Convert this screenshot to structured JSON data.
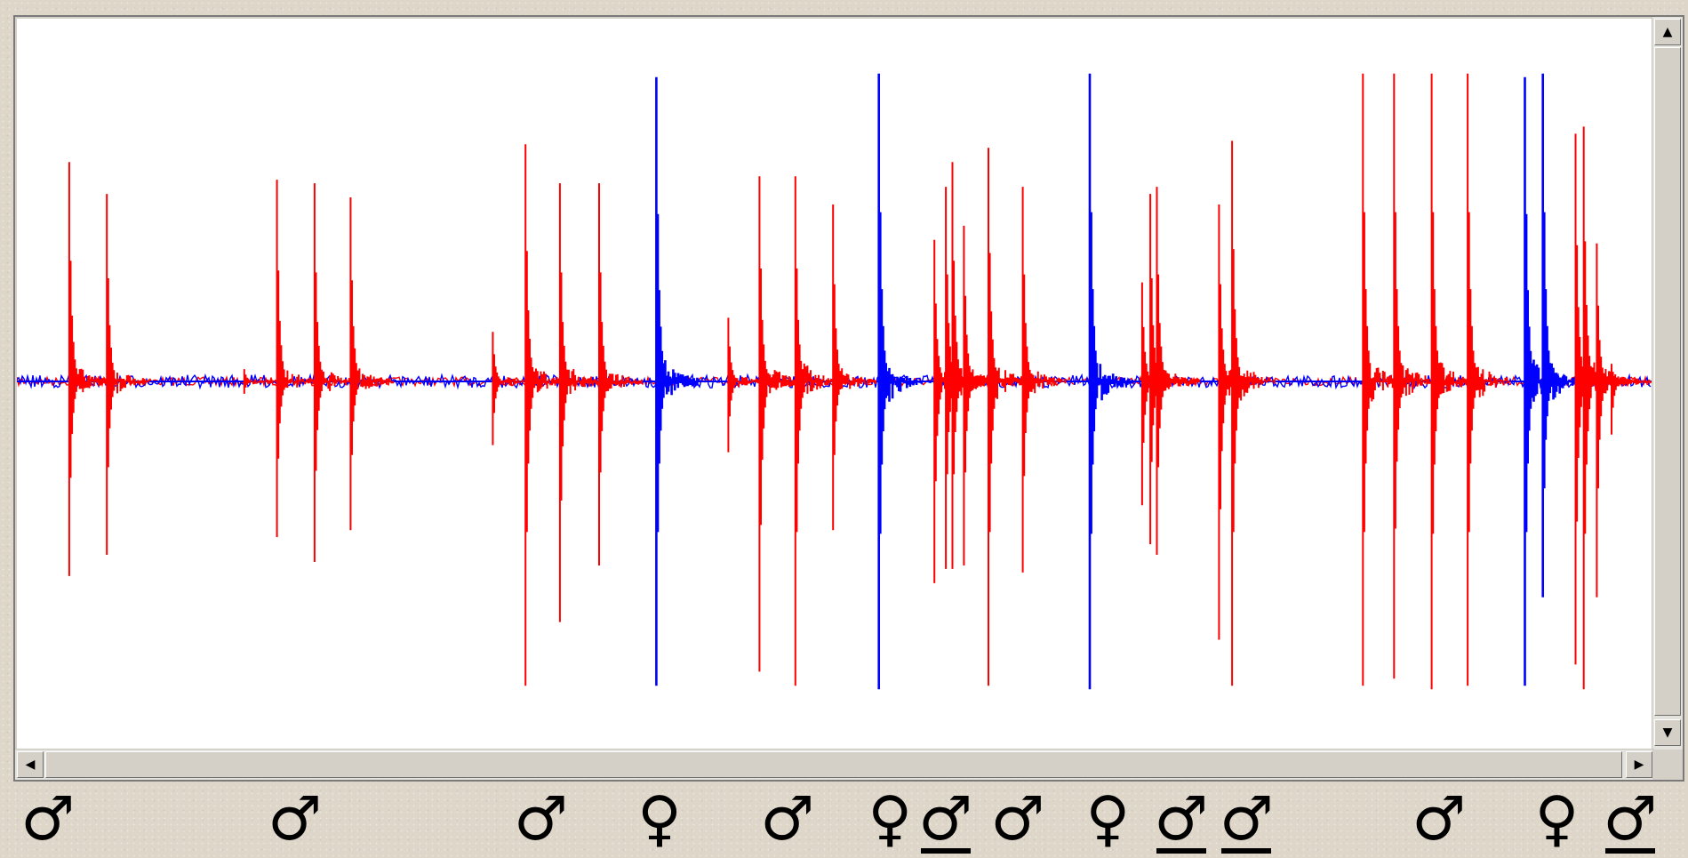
{
  "colors": {
    "male_trace": "#ff0000",
    "female_trace": "#0000ff",
    "background": "#ffffff"
  },
  "scrollbar": {
    "up_icon": "▲",
    "down_icon": "▼",
    "left_icon": "◀",
    "right_icon": "▶"
  },
  "trace": {
    "baseline_level": 0,
    "blue_background_amplitude": 0.018,
    "red_background_amplitude": 0.012,
    "pulses": [
      {
        "t": 0.032,
        "sex": "m",
        "up": 0.62,
        "down": 0.55
      },
      {
        "t": 0.055,
        "sex": "m",
        "up": 0.53,
        "down": 0.49
      },
      {
        "t": 0.139,
        "sex": "m",
        "up": 0.035,
        "down": 0.035
      },
      {
        "t": 0.159,
        "sex": "m",
        "up": 0.57,
        "down": 0.44
      },
      {
        "t": 0.182,
        "sex": "m",
        "up": 0.56,
        "down": 0.51
      },
      {
        "t": 0.204,
        "sex": "m",
        "up": 0.52,
        "down": 0.42
      },
      {
        "t": 0.291,
        "sex": "m",
        "up": 0.14,
        "down": 0.18
      },
      {
        "t": 0.311,
        "sex": "m",
        "up": 0.67,
        "down": 0.86
      },
      {
        "t": 0.332,
        "sex": "m",
        "up": 0.56,
        "down": 0.68
      },
      {
        "t": 0.356,
        "sex": "m",
        "up": 0.56,
        "down": 0.52
      },
      {
        "t": 0.391,
        "sex": "f",
        "up": 0.86,
        "down": 0.86
      },
      {
        "t": 0.435,
        "sex": "m",
        "up": 0.18,
        "down": 0.2
      },
      {
        "t": 0.454,
        "sex": "m",
        "up": 0.58,
        "down": 0.82
      },
      {
        "t": 0.476,
        "sex": "m",
        "up": 0.58,
        "down": 0.86
      },
      {
        "t": 0.499,
        "sex": "m",
        "up": 0.5,
        "down": 0.42
      },
      {
        "t": 0.527,
        "sex": "f",
        "up": 0.87,
        "down": 0.87
      },
      {
        "t": 0.561,
        "sex": "m",
        "up": 0.4,
        "down": 0.57
      },
      {
        "t": 0.568,
        "sex": "m",
        "up": 0.55,
        "down": 0.53
      },
      {
        "t": 0.572,
        "sex": "m",
        "up": 0.62,
        "down": 0.53
      },
      {
        "t": 0.579,
        "sex": "m",
        "up": 0.44,
        "down": 0.52
      },
      {
        "t": 0.594,
        "sex": "m",
        "up": 0.66,
        "down": 0.86
      },
      {
        "t": 0.615,
        "sex": "m",
        "up": 0.55,
        "down": 0.54
      },
      {
        "t": 0.656,
        "sex": "f",
        "up": 0.87,
        "down": 0.87
      },
      {
        "t": 0.688,
        "sex": "m",
        "up": 0.28,
        "down": 0.35
      },
      {
        "t": 0.693,
        "sex": "m",
        "up": 0.53,
        "down": 0.46
      },
      {
        "t": 0.697,
        "sex": "m",
        "up": 0.55,
        "down": 0.49
      },
      {
        "t": 0.735,
        "sex": "m",
        "up": 0.5,
        "down": 0.73
      },
      {
        "t": 0.743,
        "sex": "m",
        "up": 0.68,
        "down": 0.86
      },
      {
        "t": 0.823,
        "sex": "m",
        "up": 0.87,
        "down": 0.86
      },
      {
        "t": 0.842,
        "sex": "m",
        "up": 0.87,
        "down": 0.84
      },
      {
        "t": 0.865,
        "sex": "m",
        "up": 0.87,
        "down": 0.87
      },
      {
        "t": 0.887,
        "sex": "m",
        "up": 0.87,
        "down": 0.86
      },
      {
        "t": 0.922,
        "sex": "f",
        "up": 0.86,
        "down": 0.86
      },
      {
        "t": 0.933,
        "sex": "f",
        "up": 0.87,
        "down": 0.61
      },
      {
        "t": 0.953,
        "sex": "m",
        "up": 0.7,
        "down": 0.8
      },
      {
        "t": 0.958,
        "sex": "m",
        "up": 0.72,
        "down": 0.87
      },
      {
        "t": 0.966,
        "sex": "m",
        "up": 0.39,
        "down": 0.61
      },
      {
        "t": 0.975,
        "sex": "m",
        "up": 0.05,
        "down": 0.15
      }
    ]
  },
  "symbols": [
    {
      "t": 0.0283,
      "glyph": "♂",
      "underline": false
    },
    {
      "t": 0.1746,
      "glyph": "♂",
      "underline": false
    },
    {
      "t": 0.3204,
      "glyph": "♂",
      "underline": false
    },
    {
      "t": 0.3907,
      "glyph": "♀",
      "underline": false
    },
    {
      "t": 0.4664,
      "glyph": "♂",
      "underline": false
    },
    {
      "t": 0.5272,
      "glyph": "♀",
      "underline": false
    },
    {
      "t": 0.5601,
      "glyph": "♂",
      "underline": true
    },
    {
      "t": 0.6029,
      "glyph": "♂",
      "underline": false
    },
    {
      "t": 0.6563,
      "glyph": "♀",
      "underline": false
    },
    {
      "t": 0.6997,
      "glyph": "♂",
      "underline": true
    },
    {
      "t": 0.7385,
      "glyph": "♂",
      "underline": true
    },
    {
      "t": 0.8524,
      "glyph": "♂",
      "underline": false
    },
    {
      "t": 0.9223,
      "glyph": "♀",
      "underline": false
    },
    {
      "t": 0.9657,
      "glyph": "♂",
      "underline": true
    }
  ]
}
